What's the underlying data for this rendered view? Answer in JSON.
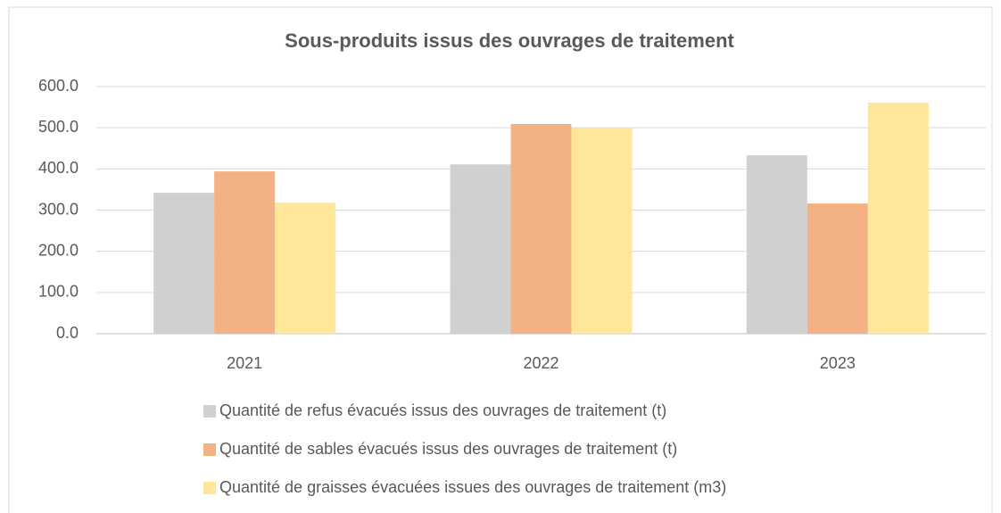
{
  "chart_data": {
    "type": "bar",
    "title": "Sous-produits issus des ouvrages de traitement",
    "categories": [
      "2021",
      "2022",
      "2023"
    ],
    "series": [
      {
        "name": "Quantité de refus évacués issus des ouvrages de traitement (t)",
        "color": "#d0d0d0",
        "values": [
          342,
          411,
          433
        ]
      },
      {
        "name": "Quantité de sables évacués issus des ouvrages de traitement (t)",
        "color": "#f4b183",
        "values": [
          394,
          509,
          316
        ]
      },
      {
        "name": "Quantité de graisses évacuées issues des ouvrages de traitement (m3)",
        "color": "#ffe699",
        "values": [
          318,
          500,
          561
        ]
      }
    ],
    "ylim": [
      0,
      600
    ],
    "yticks": [
      {
        "value": 0,
        "label": "0.0"
      },
      {
        "value": 100,
        "label": "100.0"
      },
      {
        "value": 200,
        "label": "200.0"
      },
      {
        "value": 300,
        "label": "300.0"
      },
      {
        "value": 400,
        "label": "400.0"
      },
      {
        "value": 500,
        "label": "500.0"
      },
      {
        "value": 600,
        "label": "600.0"
      }
    ],
    "grid": true,
    "legend": "bottom"
  }
}
